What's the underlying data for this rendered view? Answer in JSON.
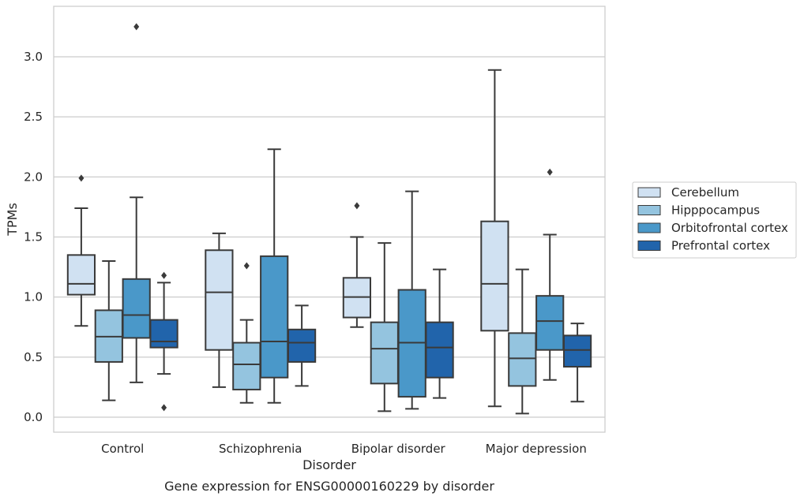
{
  "chart_data": {
    "type": "box",
    "title": "Gene expression for ENSG00000160229 by disorder",
    "xlabel": "Disorder",
    "ylabel": "TPMs",
    "ylim": [
      -0.12,
      3.42
    ],
    "yticks": [
      "0.0",
      "0.5",
      "1.0",
      "1.5",
      "2.0",
      "2.5",
      "3.0"
    ],
    "grid": true,
    "legend_position": "right",
    "categories": [
      "Control",
      "Schizophrenia",
      "Bipolar disorder",
      "Major depression"
    ],
    "series": [
      {
        "name": "Cerebellum",
        "color": "#d0e1f2",
        "boxes": [
          {
            "whislo": 0.76,
            "q1": 1.02,
            "med": 1.11,
            "q3": 1.35,
            "whishi": 1.74,
            "fliers": [
              1.99
            ]
          },
          {
            "whislo": 0.25,
            "q1": 0.56,
            "med": 1.04,
            "q3": 1.39,
            "whishi": 1.53,
            "fliers": []
          },
          {
            "whislo": 0.75,
            "q1": 0.83,
            "med": 1.0,
            "q3": 1.16,
            "whishi": 1.5,
            "fliers": [
              1.76
            ]
          },
          {
            "whislo": 0.09,
            "q1": 0.72,
            "med": 1.11,
            "q3": 1.63,
            "whishi": 2.89,
            "fliers": []
          }
        ]
      },
      {
        "name": "Hipppocampus",
        "color": "#94c4df",
        "boxes": [
          {
            "whislo": 0.14,
            "q1": 0.46,
            "med": 0.67,
            "q3": 0.89,
            "whishi": 1.3,
            "fliers": []
          },
          {
            "whislo": 0.12,
            "q1": 0.23,
            "med": 0.44,
            "q3": 0.62,
            "whishi": 0.81,
            "fliers": [
              1.26
            ]
          },
          {
            "whislo": 0.05,
            "q1": 0.28,
            "med": 0.57,
            "q3": 0.79,
            "whishi": 1.45,
            "fliers": []
          },
          {
            "whislo": 0.03,
            "q1": 0.26,
            "med": 0.49,
            "q3": 0.7,
            "whishi": 1.23,
            "fliers": []
          }
        ]
      },
      {
        "name": "Orbitofrontal cortex",
        "color": "#4a98c9",
        "boxes": [
          {
            "whislo": 0.29,
            "q1": 0.66,
            "med": 0.85,
            "q3": 1.15,
            "whishi": 1.83,
            "fliers": [
              3.25
            ]
          },
          {
            "whislo": 0.12,
            "q1": 0.33,
            "med": 0.63,
            "q3": 1.34,
            "whishi": 2.23,
            "fliers": []
          },
          {
            "whislo": 0.07,
            "q1": 0.17,
            "med": 0.62,
            "q3": 1.06,
            "whishi": 1.88,
            "fliers": []
          },
          {
            "whislo": 0.31,
            "q1": 0.56,
            "med": 0.8,
            "q3": 1.01,
            "whishi": 1.52,
            "fliers": [
              2.04
            ]
          }
        ]
      },
      {
        "name": "Prefrontal cortex",
        "color": "#2164ab",
        "boxes": [
          {
            "whislo": 0.36,
            "q1": 0.58,
            "med": 0.63,
            "q3": 0.81,
            "whishi": 1.12,
            "fliers": [
              1.18,
              0.08
            ]
          },
          {
            "whislo": 0.26,
            "q1": 0.46,
            "med": 0.62,
            "q3": 0.73,
            "whishi": 0.93,
            "fliers": []
          },
          {
            "whislo": 0.16,
            "q1": 0.33,
            "med": 0.58,
            "q3": 0.79,
            "whishi": 1.23,
            "fliers": []
          },
          {
            "whislo": 0.13,
            "q1": 0.42,
            "med": 0.56,
            "q3": 0.68,
            "whishi": 0.78,
            "fliers": []
          }
        ]
      }
    ]
  }
}
